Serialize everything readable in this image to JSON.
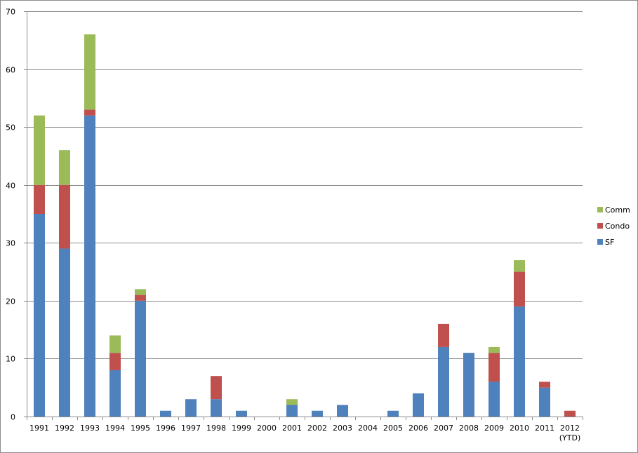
{
  "chart_data": {
    "type": "bar",
    "stacked": true,
    "categories": [
      "1991",
      "1992",
      "1993",
      "1994",
      "1995",
      "1996",
      "1997",
      "1998",
      "1999",
      "2000",
      "2001",
      "2002",
      "2003",
      "2004",
      "2005",
      "2006",
      "2007",
      "2008",
      "2009",
      "2010",
      "2011",
      "2012\n(YTD)"
    ],
    "series": [
      {
        "name": "SF",
        "color": "#4f81bd",
        "values": [
          35,
          29,
          52,
          8,
          20,
          1,
          3,
          3,
          1,
          0,
          2,
          1,
          2,
          0,
          1,
          4,
          12,
          11,
          6,
          19,
          5,
          0
        ]
      },
      {
        "name": "Condo",
        "color": "#c0504d",
        "values": [
          5,
          11,
          1,
          3,
          1,
          0,
          0,
          4,
          0,
          0,
          0,
          0,
          0,
          0,
          0,
          0,
          4,
          0,
          5,
          6,
          1,
          1
        ]
      },
      {
        "name": "Comm",
        "color": "#9bbb59",
        "values": [
          12,
          6,
          13,
          3,
          1,
          0,
          0,
          0,
          0,
          0,
          1,
          0,
          0,
          0,
          0,
          0,
          0,
          0,
          1,
          2,
          0,
          0
        ]
      }
    ],
    "ylim": [
      0,
      70
    ],
    "yticks": [
      0,
      10,
      20,
      30,
      40,
      50,
      60,
      70
    ],
    "grid": true,
    "legend": "right",
    "title": "",
    "xlabel": "",
    "ylabel": ""
  }
}
